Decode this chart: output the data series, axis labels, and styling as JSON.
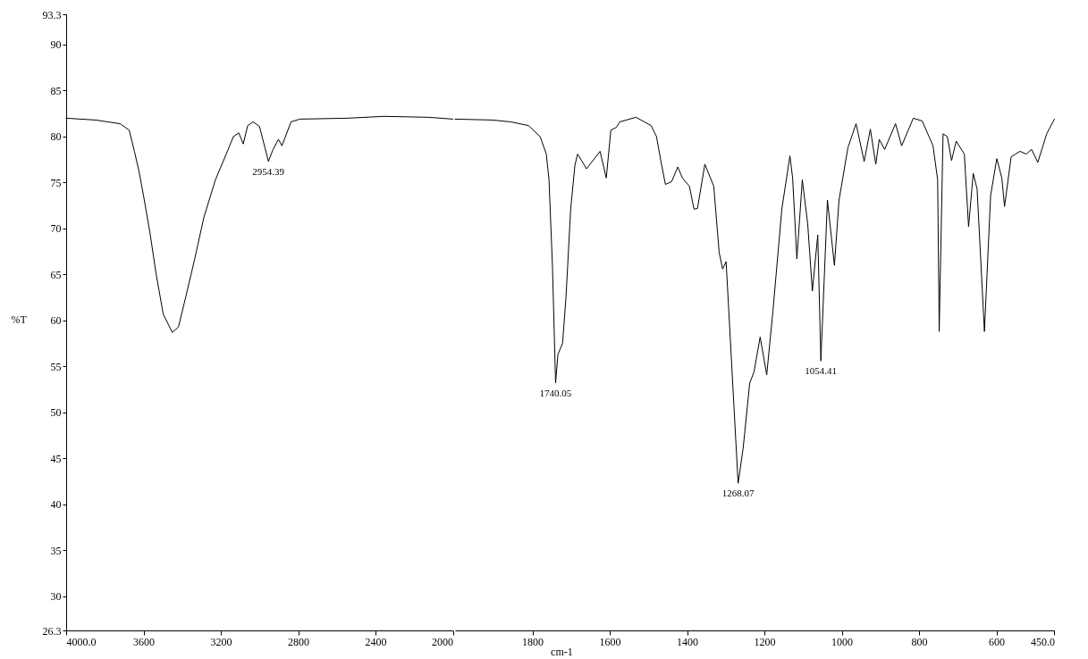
{
  "chart_data": [
    {
      "type": "line",
      "ylabel": "%T",
      "x": [
        4000,
        3847,
        3721,
        3674,
        3647,
        3623,
        3600,
        3567,
        3535,
        3498,
        3451,
        3419,
        3381,
        3335,
        3288,
        3228,
        3172,
        3135,
        3107,
        3084,
        3061,
        3033,
        3000,
        2972,
        2954,
        2930,
        2902,
        2884,
        2837,
        2791,
        2544,
        2358,
        2126,
        2000
      ],
      "series": [
        {
          "color": "#000000",
          "values": [
            82.0,
            81.8,
            81.4,
            80.7,
            78.4,
            76.2,
            73.6,
            69.6,
            65.1,
            60.7,
            58.7,
            59.3,
            62.6,
            66.7,
            71.2,
            75.3,
            78.1,
            80.0,
            80.4,
            79.2,
            81.2,
            81.6,
            81.1,
            78.8,
            77.3,
            78.6,
            79.7,
            79.0,
            81.6,
            81.9,
            82.0,
            82.2,
            82.1,
            81.9
          ]
        }
      ],
      "annotations": [
        {
          "text": "2954.39",
          "x": 2954,
          "y": 77.3
        }
      ],
      "xlim": [
        4000,
        2000
      ],
      "ylim": [
        26.3,
        93.3
      ],
      "xticks": [
        {
          "value": 4000,
          "label": "4000.0"
        },
        3600,
        3200,
        2800,
        2400,
        2000
      ],
      "yticks": [
        26.3,
        30,
        35,
        40,
        45,
        50,
        55,
        60,
        65,
        70,
        75,
        80,
        85,
        90,
        93.3
      ],
      "grid": false,
      "marker": "none",
      "line_style": "solid"
    },
    {
      "type": "line",
      "xlabel": "cm-1",
      "x": [
        2000,
        1903,
        1856,
        1810,
        1780,
        1764,
        1757,
        1748,
        1740,
        1734,
        1722,
        1713,
        1701,
        1690,
        1683,
        1660,
        1625,
        1609,
        1597,
        1583,
        1574,
        1532,
        1493,
        1479,
        1468,
        1456,
        1440,
        1424,
        1412,
        1394,
        1382,
        1373,
        1354,
        1331,
        1317,
        1308,
        1299,
        1282,
        1268,
        1255,
        1238,
        1227,
        1211,
        1194,
        1178,
        1155,
        1134,
        1127,
        1116,
        1102,
        1088,
        1076,
        1062,
        1054,
        1037,
        1019,
        1007,
        984,
        963,
        942,
        926,
        912,
        903,
        889,
        861,
        845,
        815,
        792,
        764,
        752,
        748,
        738,
        727,
        716,
        704,
        683,
        672,
        660,
        650,
        631,
        615,
        599,
        586,
        579,
        562,
        539,
        523,
        509,
        493,
        470,
        450
      ],
      "series": [
        {
          "color": "#000000",
          "values": [
            81.9,
            81.8,
            81.6,
            81.2,
            80.0,
            78.1,
            75.3,
            65.8,
            53.2,
            56.3,
            57.5,
            62.6,
            72.1,
            76.9,
            78.1,
            76.5,
            78.4,
            75.5,
            80.7,
            81.0,
            81.6,
            82.1,
            81.2,
            80.0,
            77.4,
            74.8,
            75.1,
            76.7,
            75.5,
            74.6,
            72.1,
            72.2,
            77.0,
            74.6,
            67.4,
            65.6,
            66.4,
            53.2,
            42.3,
            46.1,
            53.2,
            54.4,
            58.2,
            54.1,
            61.0,
            72.1,
            77.9,
            75.5,
            66.7,
            75.3,
            70.5,
            63.2,
            69.3,
            55.6,
            73.1,
            66.0,
            73.1,
            78.8,
            81.4,
            77.3,
            80.8,
            77.0,
            79.7,
            78.6,
            81.4,
            79.0,
            82.0,
            81.7,
            79.0,
            75.3,
            58.8,
            80.3,
            80.0,
            77.4,
            79.5,
            78.1,
            70.2,
            76.0,
            74.3,
            58.8,
            73.6,
            77.6,
            75.5,
            72.4,
            77.8,
            78.4,
            78.1,
            78.6,
            77.2,
            80.3,
            81.9
          ]
        }
      ],
      "annotations": [
        {
          "text": "1740.05",
          "x": 1740,
          "y": 53.2
        },
        {
          "text": "1268.07",
          "x": 1268,
          "y": 42.3
        },
        {
          "text": "1054.41",
          "x": 1054,
          "y": 55.6
        }
      ],
      "xlim": [
        2000,
        450
      ],
      "ylim": [
        26.3,
        93.3
      ],
      "xticks": [
        1800,
        1600,
        1400,
        1200,
        1000,
        800,
        600,
        {
          "value": 450,
          "label": "450.0"
        }
      ],
      "tick_labels": "x",
      "grid": false,
      "marker": "none",
      "line_style": "solid"
    }
  ]
}
